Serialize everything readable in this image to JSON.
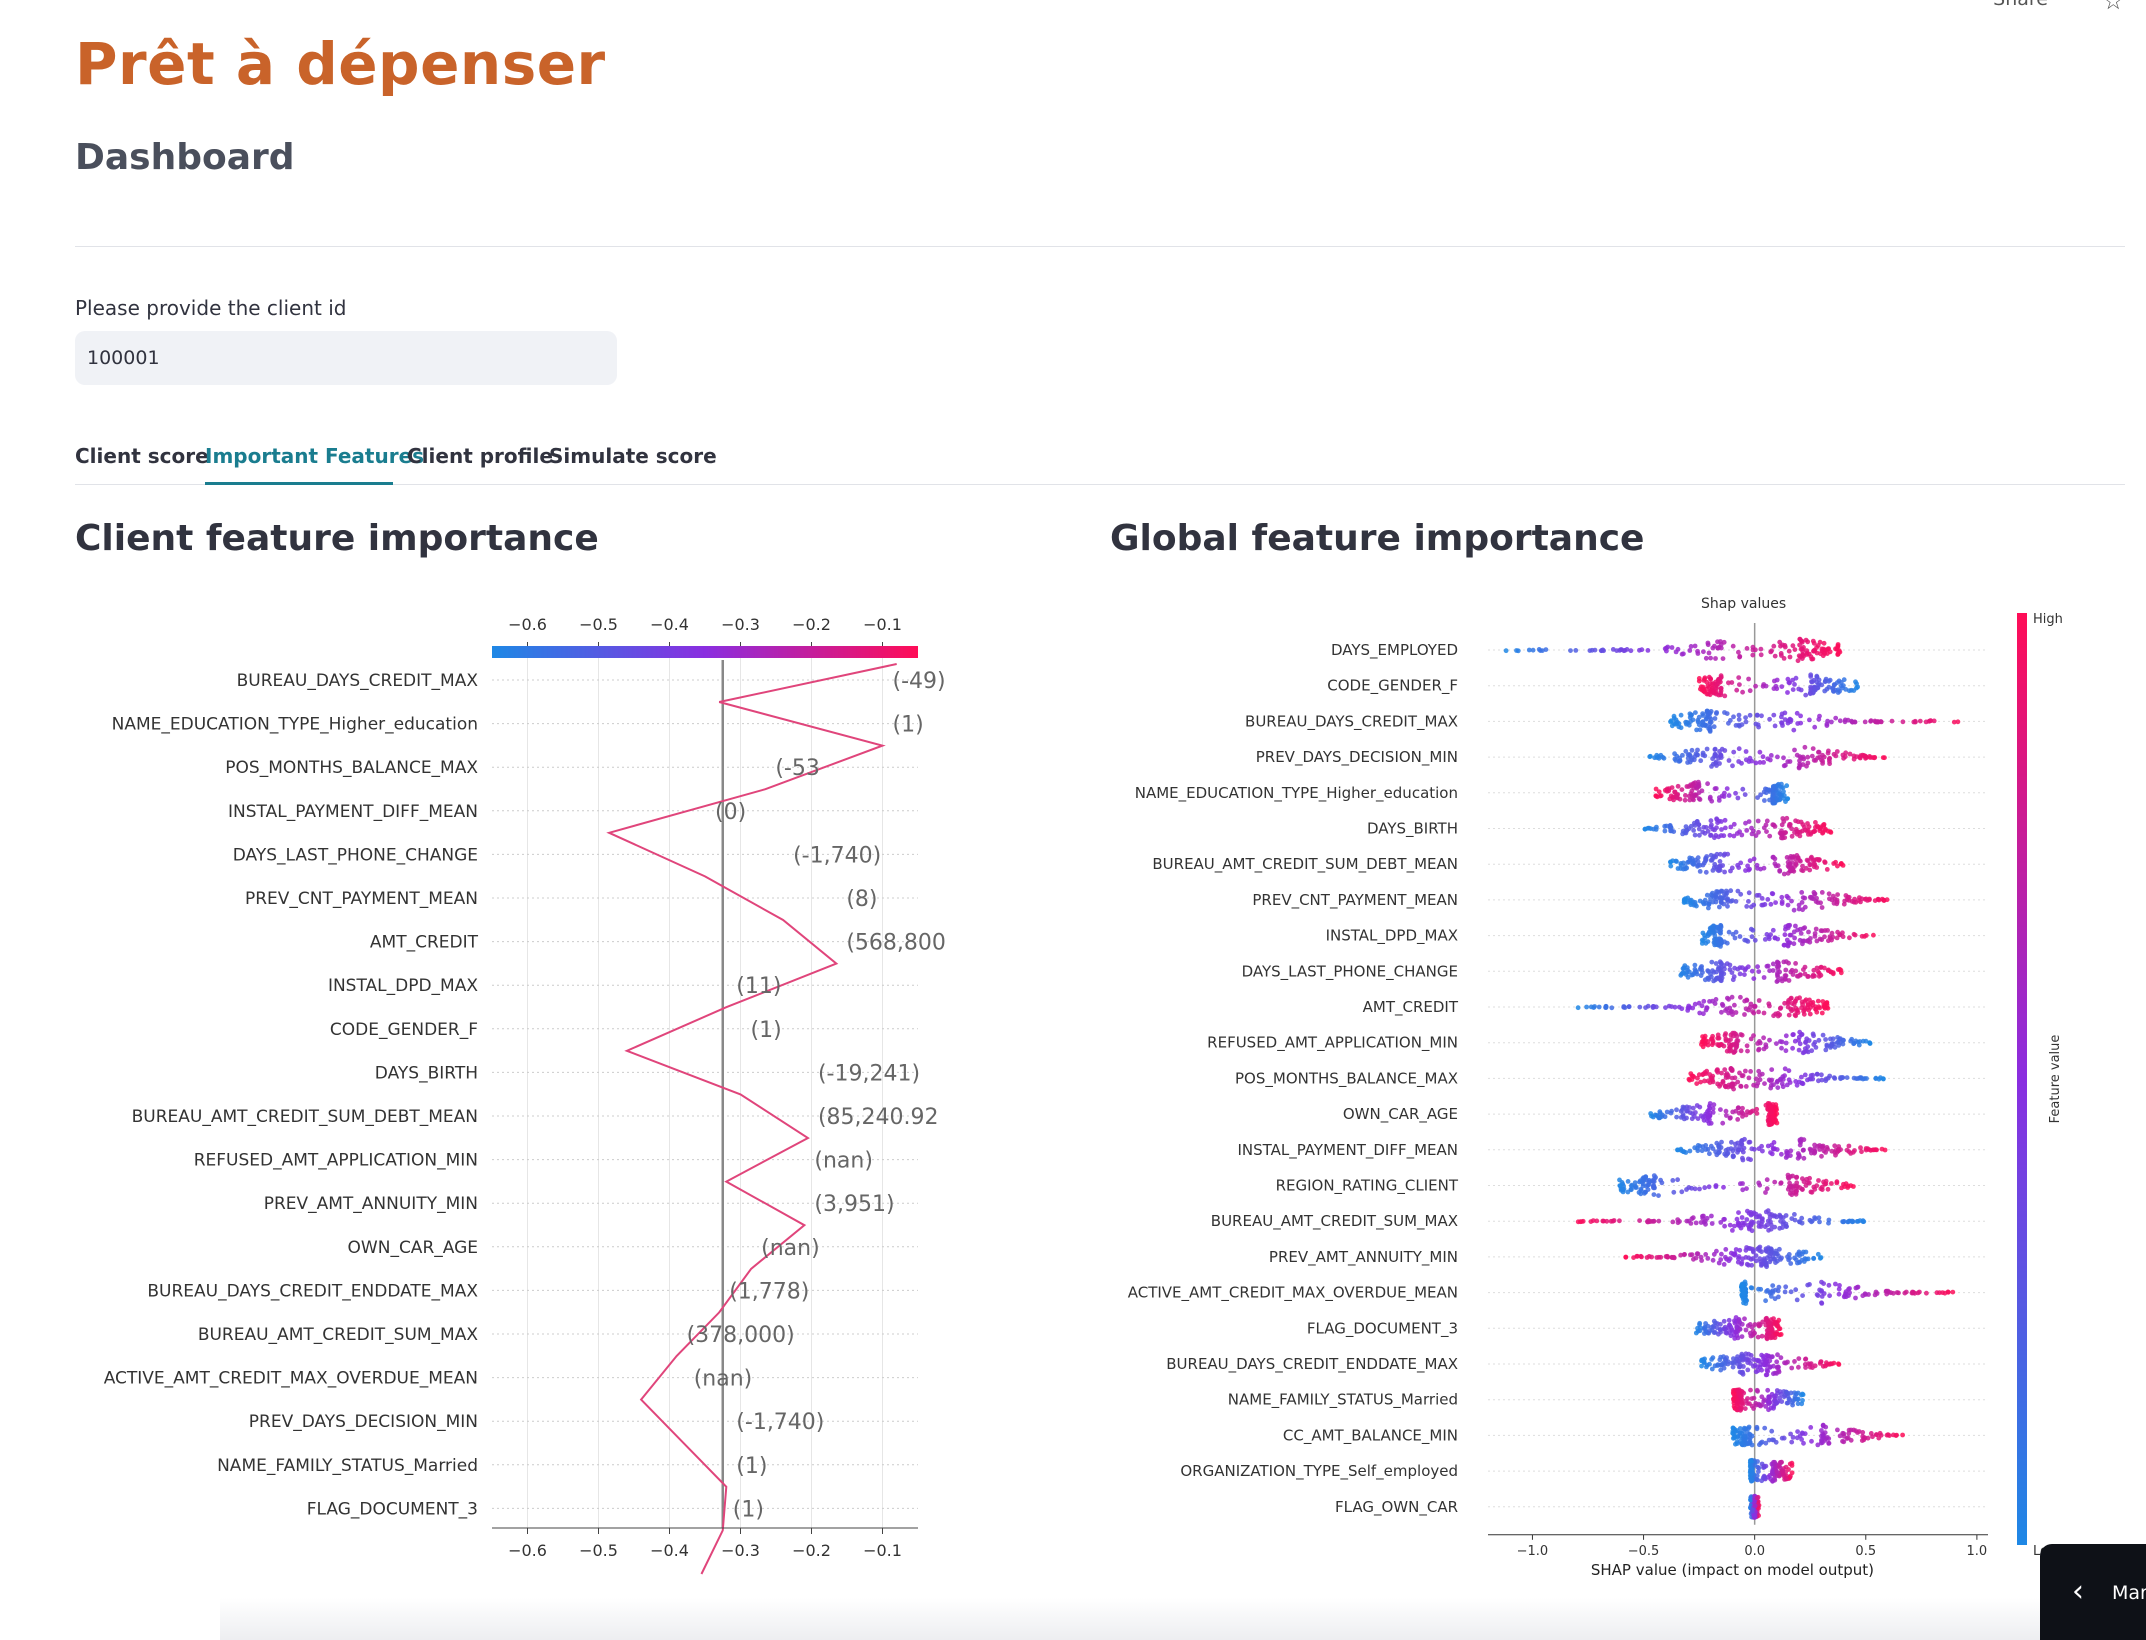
{
  "header": {
    "share_label": "Share",
    "star_icon": "star-icon",
    "app_title": "Prêt à dépenser",
    "subtitle": "Dashboard"
  },
  "client_input": {
    "label": "Please provide the client id",
    "value": "100001"
  },
  "tabs": [
    {
      "label": "Client score",
      "active": false
    },
    {
      "label": "Important Features",
      "active": true
    },
    {
      "label": "Client profile",
      "active": false
    },
    {
      "label": "Simulate score",
      "active": false
    }
  ],
  "colors": {
    "title": "#c9632a",
    "active_tab": "#1a7d8f",
    "low": "#1e88e5",
    "high": "#ff0d57",
    "decision_line": "#e0457b"
  },
  "sections": {
    "client_title": "Client feature importance",
    "global_title": "Global feature importance"
  },
  "help": {
    "label": "Manage app",
    "icon": "chevron-left-icon"
  },
  "chart_data": [
    {
      "type": "line",
      "subtype": "shap-decision-plot",
      "xlim": [
        -0.65,
        -0.05
      ],
      "x_ticks": [
        -0.6,
        -0.5,
        -0.4,
        -0.3,
        -0.2,
        -0.1
      ],
      "x_tick_labels": [
        "−0.6",
        "−0.5",
        "−0.4",
        "−0.3",
        "−0.2",
        "−0.1"
      ],
      "base_value": -0.325,
      "features": [
        {
          "name": "BUREAU_DAYS_CREDIT_MAX",
          "feature_value": "(-49)",
          "cumulative": -0.33
        },
        {
          "name": "NAME_EDUCATION_TYPE_Higher_education",
          "feature_value": "(1)",
          "cumulative": -0.1
        },
        {
          "name": "POS_MONTHS_BALANCE_MAX",
          "feature_value": "(-53",
          "cumulative": -0.265
        },
        {
          "name": "INSTAL_PAYMENT_DIFF_MEAN",
          "feature_value": "(0)",
          "cumulative": -0.485
        },
        {
          "name": "DAYS_LAST_PHONE_CHANGE",
          "feature_value": "(-1,740)",
          "cumulative": -0.35
        },
        {
          "name": "PREV_CNT_PAYMENT_MEAN",
          "feature_value": "(8)",
          "cumulative": -0.24
        },
        {
          "name": "AMT_CREDIT",
          "feature_value": "(568,800",
          "cumulative": -0.165
        },
        {
          "name": "INSTAL_DPD_MAX",
          "feature_value": "(11)",
          "cumulative": -0.32
        },
        {
          "name": "CODE_GENDER_F",
          "feature_value": "(1)",
          "cumulative": -0.46
        },
        {
          "name": "DAYS_BIRTH",
          "feature_value": "(-19,241)",
          "cumulative": -0.3
        },
        {
          "name": "BUREAU_AMT_CREDIT_SUM_DEBT_MEAN",
          "feature_value": "(85,240.92",
          "cumulative": -0.205
        },
        {
          "name": "REFUSED_AMT_APPLICATION_MIN",
          "feature_value": "(nan)",
          "cumulative": -0.32
        },
        {
          "name": "PREV_AMT_ANNUITY_MIN",
          "feature_value": "(3,951)",
          "cumulative": -0.21
        },
        {
          "name": "OWN_CAR_AGE",
          "feature_value": "(nan)",
          "cumulative": -0.285
        },
        {
          "name": "BUREAU_DAYS_CREDIT_ENDDATE_MAX",
          "feature_value": "(1,778)",
          "cumulative": -0.33
        },
        {
          "name": "BUREAU_AMT_CREDIT_SUM_MAX",
          "feature_value": "(378,000)",
          "cumulative": -0.39
        },
        {
          "name": "ACTIVE_AMT_CREDIT_MAX_OVERDUE_MEAN",
          "feature_value": "(nan)",
          "cumulative": -0.44
        },
        {
          "name": "PREV_DAYS_DECISION_MIN",
          "feature_value": "(-1,740)",
          "cumulative": -0.38
        },
        {
          "name": "NAME_FAMILY_STATUS_Married",
          "feature_value": "(1)",
          "cumulative": -0.32
        },
        {
          "name": "FLAG_DOCUMENT_3",
          "feature_value": "(1)",
          "cumulative": -0.325
        },
        {
          "name": "",
          "feature_value": "",
          "cumulative": -0.355
        }
      ],
      "final_value": -0.08
    },
    {
      "type": "scatter",
      "subtype": "shap-beeswarm",
      "title": "Shap values",
      "xlabel": "SHAP value (impact on model output)",
      "xlim": [
        -1.2,
        1.05
      ],
      "x_ticks": [
        -1.0,
        -0.5,
        0.0,
        0.5,
        1.0
      ],
      "x_tick_labels": [
        "−1.0",
        "−0.5",
        "0.0",
        "0.5",
        "1.0"
      ],
      "colorbar": {
        "label": "Feature value",
        "high": "High",
        "low": "Low"
      },
      "features": [
        {
          "name": "DAYS_EMPLOYED",
          "min": -1.13,
          "max": 0.4,
          "low_side": "left",
          "mode_left": -0.15,
          "mode_right": 0.2
        },
        {
          "name": "CODE_GENDER_F",
          "min": -0.25,
          "max": 0.47,
          "low_side": "right",
          "mode_left": -0.15,
          "mode_right": 0.25
        },
        {
          "name": "BUREAU_DAYS_CREDIT_MAX",
          "min": -0.38,
          "max": 0.95,
          "low_side": "left",
          "mode_left": -0.2,
          "mode_right": 0.12
        },
        {
          "name": "PREV_DAYS_DECISION_MIN",
          "min": -0.48,
          "max": 0.6,
          "low_side": "left",
          "mode_left": -0.15,
          "mode_right": 0.2
        },
        {
          "name": "NAME_EDUCATION_TYPE_Higher_education",
          "min": -0.45,
          "max": 0.15,
          "low_side": "right",
          "mode_left": -0.25,
          "mode_right": 0.08
        },
        {
          "name": "DAYS_BIRTH",
          "min": -0.5,
          "max": 0.35,
          "low_side": "left",
          "mode_left": -0.15,
          "mode_right": 0.12
        },
        {
          "name": "BUREAU_AMT_CREDIT_SUM_DEBT_MEAN",
          "min": -0.38,
          "max": 0.4,
          "low_side": "left",
          "mode_left": -0.15,
          "mode_right": 0.15
        },
        {
          "name": "PREV_CNT_PAYMENT_MEAN",
          "min": -0.32,
          "max": 0.62,
          "low_side": "left",
          "mode_left": -0.12,
          "mode_right": 0.2
        },
        {
          "name": "INSTAL_DPD_MAX",
          "min": -0.24,
          "max": 0.55,
          "low_side": "left",
          "mode_left": -0.15,
          "mode_right": 0.15
        },
        {
          "name": "DAYS_LAST_PHONE_CHANGE",
          "min": -0.35,
          "max": 0.4,
          "low_side": "left",
          "mode_left": -0.15,
          "mode_right": 0.1
        },
        {
          "name": "AMT_CREDIT",
          "min": -0.8,
          "max": 0.33,
          "low_side": "left",
          "mode_left": -0.1,
          "mode_right": 0.15
        },
        {
          "name": "REFUSED_AMT_APPLICATION_MIN",
          "min": -0.24,
          "max": 0.52,
          "low_side": "right",
          "mode_left": -0.08,
          "mode_right": 0.2
        },
        {
          "name": "POS_MONTHS_BALANCE_MAX",
          "min": -0.3,
          "max": 0.58,
          "low_side": "right",
          "mode_left": -0.1,
          "mode_right": 0.1
        },
        {
          "name": "OWN_CAR_AGE",
          "min": -0.47,
          "max": 0.1,
          "low_side": "left",
          "mode_left": -0.2,
          "mode_right": 0.06
        },
        {
          "name": "INSTAL_PAYMENT_DIFF_MEAN",
          "min": -0.35,
          "max": 0.6,
          "low_side": "left",
          "mode_left": -0.05,
          "mode_right": 0.2
        },
        {
          "name": "REGION_RATING_CLIENT",
          "min": -0.62,
          "max": 0.45,
          "low_side": "left",
          "mode_left": -0.45,
          "mode_right": 0.15
        },
        {
          "name": "BUREAU_AMT_CREDIT_SUM_MAX",
          "min": -0.82,
          "max": 0.52,
          "low_side": "right",
          "mode_left": -0.05,
          "mode_right": 0.05
        },
        {
          "name": "PREV_AMT_ANNUITY_MIN",
          "min": -0.58,
          "max": 0.3,
          "low_side": "right",
          "mode_left": -0.05,
          "mode_right": 0.05
        },
        {
          "name": "ACTIVE_AMT_CREDIT_MAX_OVERDUE_MEAN",
          "min": -0.06,
          "max": 0.9,
          "low_side": "left",
          "mode_left": -0.04,
          "mode_right": 0.3
        },
        {
          "name": "FLAG_DOCUMENT_3",
          "min": -0.27,
          "max": 0.12,
          "low_side": "left",
          "mode_left": -0.08,
          "mode_right": 0.05
        },
        {
          "name": "BUREAU_DAYS_CREDIT_ENDDATE_MAX",
          "min": -0.24,
          "max": 0.38,
          "low_side": "left",
          "mode_left": -0.05,
          "mode_right": 0.05
        },
        {
          "name": "NAME_FAMILY_STATUS_Married",
          "min": -0.1,
          "max": 0.22,
          "low_side": "right",
          "mode_left": -0.06,
          "mode_right": 0.06
        },
        {
          "name": "CC_AMT_BALANCE_MIN",
          "min": -0.1,
          "max": 0.67,
          "low_side": "left",
          "mode_left": -0.02,
          "mode_right": 0.3
        },
        {
          "name": "ORGANIZATION_TYPE_Self_employed",
          "min": -0.02,
          "max": 0.17,
          "low_side": "left",
          "mode_left": -0.01,
          "mode_right": 0.08
        },
        {
          "name": "FLAG_OWN_CAR",
          "min": -0.02,
          "max": 0.02,
          "low_side": "left",
          "mode_left": 0.0,
          "mode_right": 0.0
        }
      ]
    }
  ]
}
